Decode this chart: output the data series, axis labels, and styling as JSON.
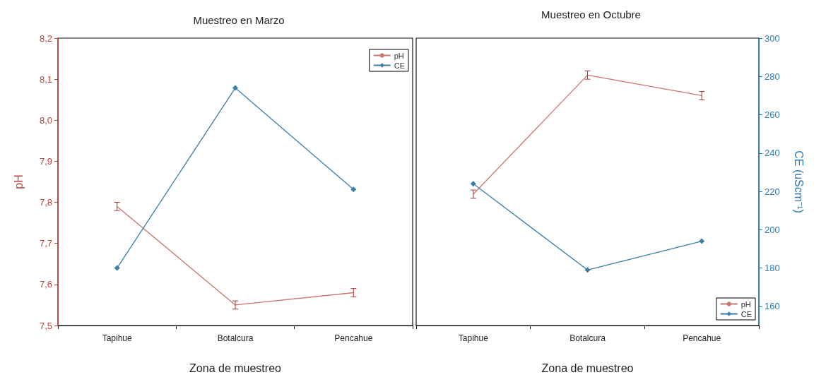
{
  "chart_data": [
    {
      "type": "line",
      "title": "Muestreo en Marzo",
      "xlabel": "Zona de muestreo",
      "ylabel": "pH",
      "categories": [
        "Tapihue",
        "Botalcura",
        "Pencahue"
      ],
      "series": [
        {
          "name": "pH",
          "color": "#c9766e",
          "values": [
            7.79,
            7.55,
            7.58
          ],
          "errors": [
            0.01,
            0.01,
            0.01
          ],
          "marker": "none"
        },
        {
          "name": "CE",
          "color": "#3b7fa8",
          "values": [
            180,
            274,
            221
          ],
          "axis": "y2",
          "marker": "diamond"
        }
      ],
      "ylim": [
        7.5,
        8.2
      ],
      "yticks": [
        {
          "value": 7.5,
          "label": "7,5"
        },
        {
          "value": 7.6,
          "label": "7,6"
        },
        {
          "value": 7.7,
          "label": "7,7"
        },
        {
          "value": 7.8,
          "label": "7,8"
        },
        {
          "value": 7.9,
          "label": "7,9"
        },
        {
          "value": 8.0,
          "label": "8,0"
        },
        {
          "value": 8.1,
          "label": "8,1"
        },
        {
          "value": 8.2,
          "label": "8,2"
        }
      ],
      "y2lim": [
        150,
        300
      ],
      "grid": false,
      "legend": "top right"
    },
    {
      "type": "line",
      "title": "Muestreo en Octubre",
      "xlabel": "Zona de muestreo",
      "y2label": "CE (uScm⁻¹)",
      "categories": [
        "Tapihue",
        "Botalcura",
        "Pencahue"
      ],
      "series": [
        {
          "name": "pH",
          "color": "#c9766e",
          "values": [
            7.82,
            8.11,
            8.06
          ],
          "errors": [
            0.01,
            0.01,
            0.01
          ],
          "marker": "none"
        },
        {
          "name": "CE",
          "color": "#3b7fa8",
          "values": [
            224,
            179,
            194
          ],
          "axis": "y2",
          "marker": "diamond"
        }
      ],
      "ylim": [
        7.5,
        8.2
      ],
      "y2lim": [
        150,
        300
      ],
      "y2ticks": [
        160,
        180,
        200,
        220,
        240,
        260,
        280,
        300
      ],
      "grid": false,
      "legend": "bottom right"
    }
  ]
}
